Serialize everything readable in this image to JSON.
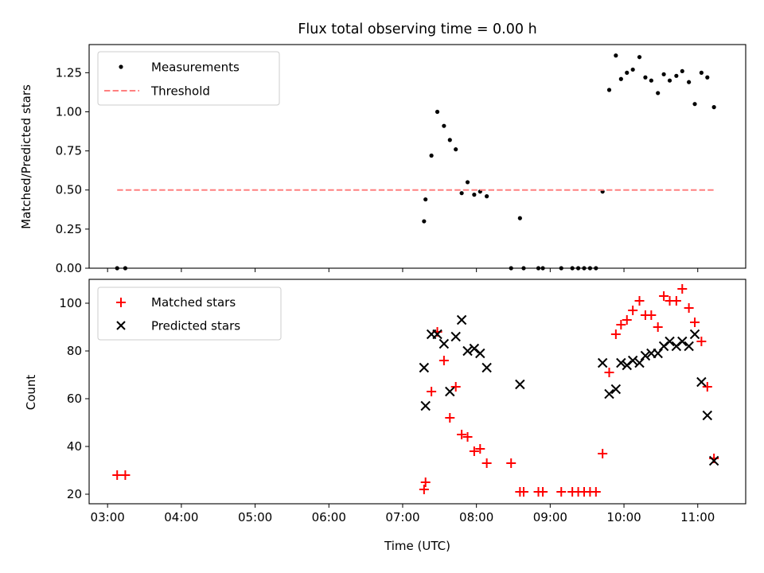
{
  "chart_data": [
    {
      "type": "scatter",
      "title": "Flux total observing time = 0.00 h",
      "xlabel": "",
      "ylabel": "Matched/Predicted stars",
      "xlim": [
        2.75,
        11.65
      ],
      "ylim": [
        0.0,
        1.43
      ],
      "yticks": [
        0.0,
        0.25,
        0.5,
        0.75,
        1.0,
        1.25
      ],
      "ytick_labels": [
        "0.00",
        "0.25",
        "0.50",
        "0.75",
        "1.00",
        "1.25"
      ],
      "legend_position": "top-left",
      "series": [
        {
          "name": "Measurements",
          "marker": "dot",
          "color": "#000000",
          "points": [
            [
              3.13,
              0.0
            ],
            [
              3.24,
              0.0
            ],
            [
              7.29,
              0.3
            ],
            [
              7.31,
              0.44
            ],
            [
              7.39,
              0.72
            ],
            [
              7.47,
              1.0
            ],
            [
              7.56,
              0.91
            ],
            [
              7.64,
              0.82
            ],
            [
              7.72,
              0.76
            ],
            [
              7.8,
              0.48
            ],
            [
              7.88,
              0.55
            ],
            [
              7.97,
              0.47
            ],
            [
              8.05,
              0.49
            ],
            [
              8.14,
              0.46
            ],
            [
              8.47,
              0.0
            ],
            [
              8.59,
              0.32
            ],
            [
              8.64,
              0.0
            ],
            [
              8.84,
              0.0
            ],
            [
              8.9,
              0.0
            ],
            [
              9.15,
              0.0
            ],
            [
              9.3,
              0.0
            ],
            [
              9.38,
              0.0
            ],
            [
              9.46,
              0.0
            ],
            [
              9.54,
              0.0
            ],
            [
              9.62,
              0.0
            ],
            [
              9.71,
              0.49
            ],
            [
              9.8,
              1.14
            ],
            [
              9.89,
              1.36
            ],
            [
              9.96,
              1.21
            ],
            [
              10.04,
              1.25
            ],
            [
              10.12,
              1.27
            ],
            [
              10.21,
              1.35
            ],
            [
              10.29,
              1.22
            ],
            [
              10.37,
              1.2
            ],
            [
              10.46,
              1.12
            ],
            [
              10.54,
              1.24
            ],
            [
              10.62,
              1.2
            ],
            [
              10.71,
              1.23
            ],
            [
              10.79,
              1.26
            ],
            [
              10.88,
              1.19
            ],
            [
              10.96,
              1.05
            ],
            [
              11.05,
              1.25
            ],
            [
              11.13,
              1.22
            ],
            [
              11.22,
              1.03
            ]
          ]
        },
        {
          "name": "Threshold",
          "marker": "dashed-line",
          "color": "#ff8080",
          "points": [
            [
              3.13,
              0.5
            ],
            [
              11.22,
              0.5
            ]
          ]
        }
      ]
    },
    {
      "type": "scatter",
      "title": "",
      "xlabel": "Time (UTC)",
      "ylabel": "Count",
      "xlim": [
        2.75,
        11.65
      ],
      "ylim": [
        16.0,
        110.0
      ],
      "yticks": [
        20,
        40,
        60,
        80,
        100
      ],
      "ytick_labels": [
        "20",
        "40",
        "60",
        "80",
        "100"
      ],
      "xticks": [
        3,
        4,
        5,
        6,
        7,
        8,
        9,
        10,
        11
      ],
      "xtick_labels": [
        "03:00",
        "04:00",
        "05:00",
        "06:00",
        "07:00",
        "08:00",
        "09:00",
        "10:00",
        "11:00"
      ],
      "legend_position": "top-left",
      "series": [
        {
          "name": "Matched stars",
          "marker": "plus",
          "color": "#ff0000",
          "points": [
            [
              3.13,
              28
            ],
            [
              3.24,
              28
            ],
            [
              7.29,
              22
            ],
            [
              7.31,
              25
            ],
            [
              7.39,
              63
            ],
            [
              7.47,
              88
            ],
            [
              7.56,
              76
            ],
            [
              7.64,
              52
            ],
            [
              7.72,
              65
            ],
            [
              7.8,
              45
            ],
            [
              7.88,
              44
            ],
            [
              7.97,
              38
            ],
            [
              8.05,
              39
            ],
            [
              8.14,
              33
            ],
            [
              8.47,
              33
            ],
            [
              8.59,
              21
            ],
            [
              8.64,
              21
            ],
            [
              8.84,
              21
            ],
            [
              8.9,
              21
            ],
            [
              9.15,
              21
            ],
            [
              9.3,
              21
            ],
            [
              9.38,
              21
            ],
            [
              9.46,
              21
            ],
            [
              9.54,
              21
            ],
            [
              9.62,
              21
            ],
            [
              9.71,
              37
            ],
            [
              9.8,
              71
            ],
            [
              9.89,
              87
            ],
            [
              9.96,
              91
            ],
            [
              10.04,
              93
            ],
            [
              10.12,
              97
            ],
            [
              10.21,
              101
            ],
            [
              10.29,
              95
            ],
            [
              10.37,
              95
            ],
            [
              10.46,
              90
            ],
            [
              10.54,
              103
            ],
            [
              10.62,
              101
            ],
            [
              10.71,
              101
            ],
            [
              10.79,
              106
            ],
            [
              10.88,
              98
            ],
            [
              10.96,
              92
            ],
            [
              11.05,
              84
            ],
            [
              11.13,
              65
            ],
            [
              11.22,
              35
            ]
          ]
        },
        {
          "name": "Predicted stars",
          "marker": "x",
          "color": "#000000",
          "points": [
            [
              7.29,
              73
            ],
            [
              7.31,
              57
            ],
            [
              7.39,
              87
            ],
            [
              7.47,
              87
            ],
            [
              7.56,
              83
            ],
            [
              7.64,
              63
            ],
            [
              7.72,
              86
            ],
            [
              7.8,
              93
            ],
            [
              7.88,
              80
            ],
            [
              7.97,
              81
            ],
            [
              8.05,
              79
            ],
            [
              8.14,
              73
            ],
            [
              8.59,
              66
            ],
            [
              9.71,
              75
            ],
            [
              9.8,
              62
            ],
            [
              9.89,
              64
            ],
            [
              9.96,
              75
            ],
            [
              10.04,
              74
            ],
            [
              10.12,
              76
            ],
            [
              10.21,
              75
            ],
            [
              10.29,
              78
            ],
            [
              10.37,
              79
            ],
            [
              10.46,
              79
            ],
            [
              10.54,
              82
            ],
            [
              10.62,
              84
            ],
            [
              10.71,
              82
            ],
            [
              10.79,
              84
            ],
            [
              10.88,
              82
            ],
            [
              10.96,
              87
            ],
            [
              11.05,
              67
            ],
            [
              11.13,
              53
            ],
            [
              11.22,
              34
            ]
          ]
        }
      ]
    }
  ]
}
